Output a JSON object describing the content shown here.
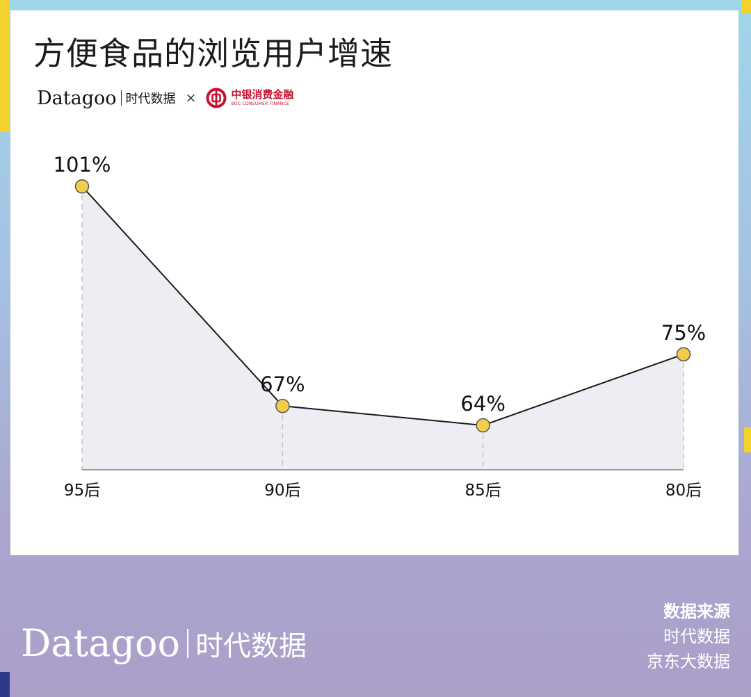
{
  "title": "方便食品的浏览用户增速",
  "brand": {
    "logo_text": "Datagoo",
    "logo_cn": "时代数据",
    "cross": "×",
    "partner_cn": "中银消费金融",
    "partner_en": "BOC CONSUMER FINANCE"
  },
  "chart_data": {
    "type": "area",
    "title": "方便食品的浏览用户增速",
    "categories": [
      "95后",
      "90后",
      "85后",
      "80后"
    ],
    "values": [
      101,
      67,
      64,
      75
    ],
    "value_labels": [
      "101%",
      "67%",
      "64%",
      "75%"
    ],
    "unit": "%",
    "ylim": [
      54,
      105
    ],
    "colors": {
      "line": "#1a1a1a",
      "fill": "#ededf3",
      "marker": "#f2cd4c",
      "marker_stroke": "#5c5c5c"
    },
    "grid": false
  },
  "footer": {
    "logo_text": "Datagoo",
    "logo_cn": "时代数据",
    "source_title": "数据来源",
    "sources": [
      "时代数据",
      "京东大数据"
    ]
  }
}
